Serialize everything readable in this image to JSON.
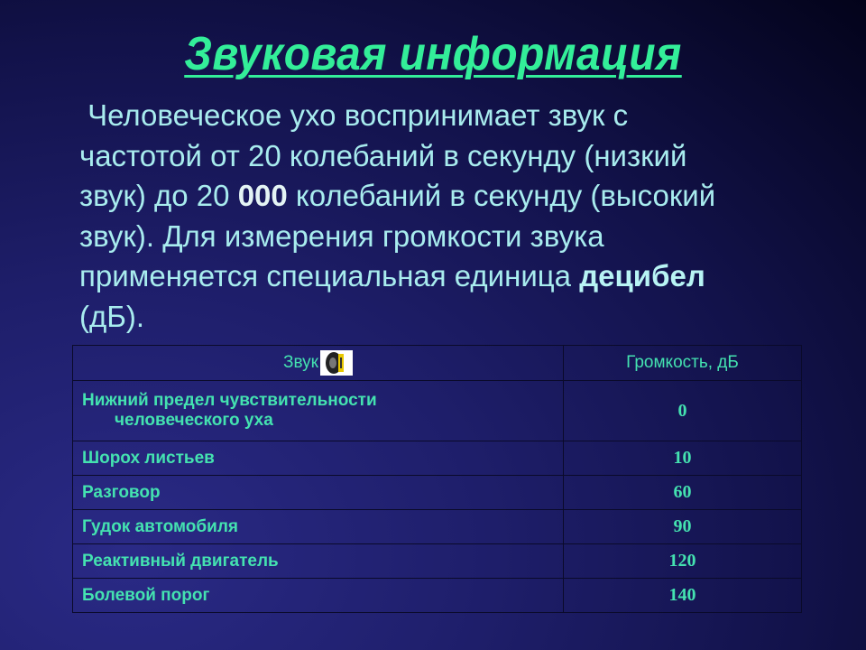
{
  "title": "Звуковая информация",
  "body": {
    "line1": "Человеческое ухо воспринимает звук с",
    "line2": "частотой от 20 колебаний в секунду (низкий",
    "line3a": "звук) до 20 ",
    "line3b": "000",
    "line3c": " колебаний в секунду (высокий",
    "line4": "звук). Для измерения громкости звука",
    "line5a": "применяется специальная единица ",
    "line5b": "децибел",
    "line6": "(дБ)."
  },
  "table": {
    "headers": [
      "Звук",
      "Громкость, дБ"
    ],
    "header_icon": "speaker-icon",
    "rows": [
      {
        "sound_line1": "Нижний предел чувствительности",
        "sound_line2": "человеческого уха",
        "db": "0"
      },
      {
        "sound": "Шорох листьев",
        "db": "10"
      },
      {
        "sound": "Разговор",
        "db": "60"
      },
      {
        "sound": "Гудок автомобиля",
        "db": "90"
      },
      {
        "sound": "Реактивный двигатель",
        "db": "120"
      },
      {
        "sound": "Болевой порог",
        "db": "140"
      }
    ]
  },
  "colors": {
    "title": "#33ee99",
    "body": "#a8ecee",
    "table_text": "#44e2b0"
  }
}
